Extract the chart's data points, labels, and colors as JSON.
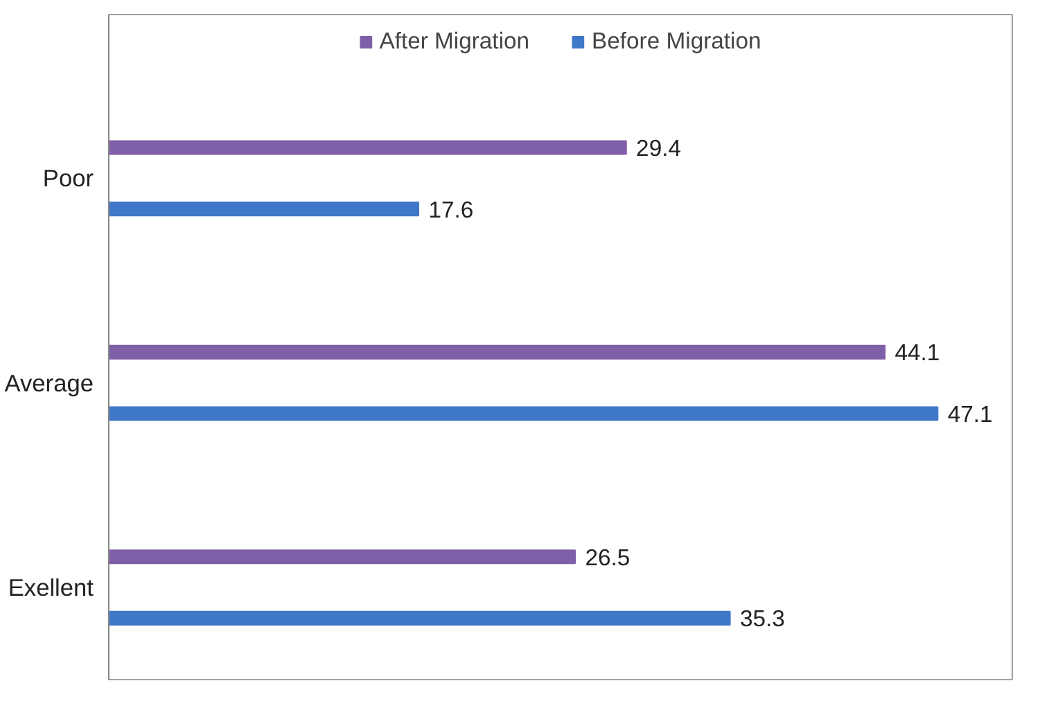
{
  "chart_data": {
    "type": "bar",
    "orientation": "horizontal",
    "categories": [
      "Poor",
      "Average",
      "Exellent"
    ],
    "series": [
      {
        "name": "After Migration",
        "color": "#7f5fa8",
        "values": [
          29.4,
          44.1,
          26.5
        ]
      },
      {
        "name": "Before Migration",
        "color": "#3f78c8",
        "values": [
          17.6,
          47.1,
          35.3
        ]
      }
    ],
    "data_labels": true,
    "legend": "top",
    "grid": false
  }
}
